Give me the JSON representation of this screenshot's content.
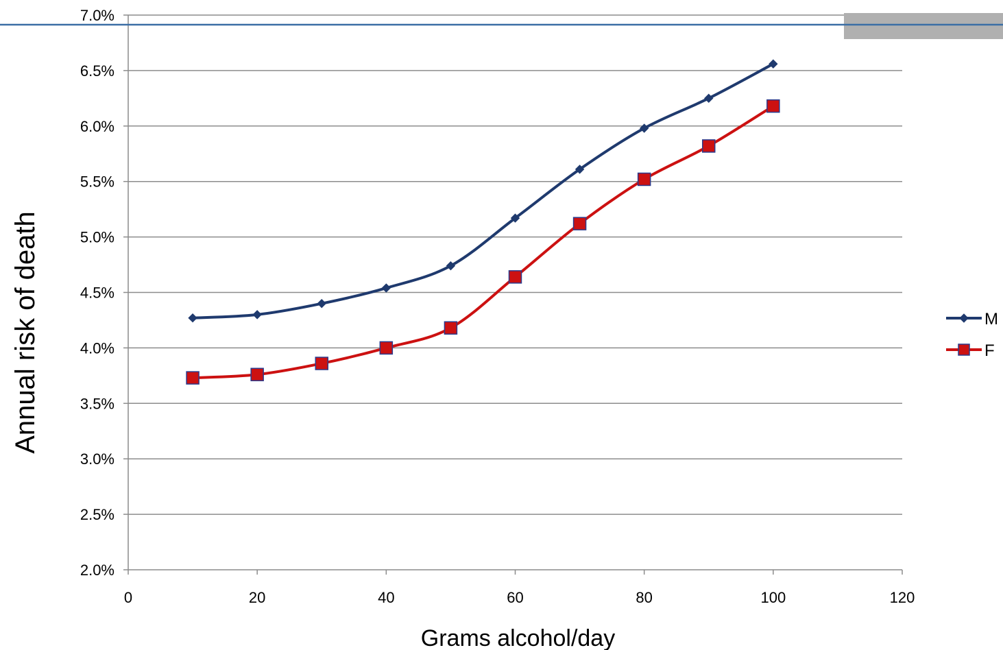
{
  "chart_data": {
    "type": "line",
    "xlabel": "Grams alcohol/day",
    "ylabel": "Annual risk of death",
    "xlim": [
      0,
      120
    ],
    "ylim": [
      2.0,
      7.0
    ],
    "x_ticks": [
      0,
      20,
      40,
      60,
      80,
      100,
      120
    ],
    "y_ticks": [
      2.0,
      2.5,
      3.0,
      3.5,
      4.0,
      4.5,
      5.0,
      5.5,
      6.0,
      6.5,
      7.0
    ],
    "y_tick_labels": [
      "2.0%",
      "2.5%",
      "3.0%",
      "3.5%",
      "4.0%",
      "4.5%",
      "5.0%",
      "5.5%",
      "6.0%",
      "6.5%",
      "7.0%"
    ],
    "x": [
      10,
      20,
      30,
      40,
      50,
      60,
      70,
      80,
      90,
      100
    ],
    "series": [
      {
        "name": "M",
        "color": "#1f3a6e",
        "marker": "diamond",
        "values": [
          4.27,
          4.3,
          4.4,
          4.54,
          4.74,
          5.17,
          5.61,
          5.98,
          6.25,
          6.56
        ]
      },
      {
        "name": "F",
        "color": "#cc1111",
        "marker": "square",
        "values": [
          3.73,
          3.76,
          3.86,
          4.0,
          4.18,
          4.64,
          5.12,
          5.52,
          5.82,
          6.18
        ]
      }
    ],
    "grid": "horizontal",
    "legend_position": "right",
    "line_style": "smooth"
  },
  "decorations": {
    "top_rule_color": "#3b6ea5",
    "corner_box_color": "#b0b0b0"
  }
}
